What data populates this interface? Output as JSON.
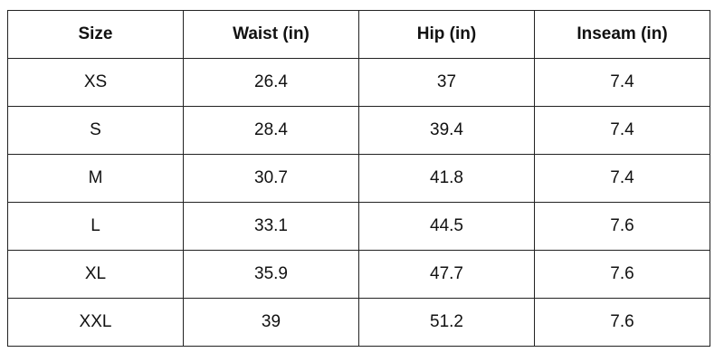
{
  "size_table": {
    "headers": [
      "Size",
      "Waist (in)",
      "Hip (in)",
      "Inseam (in)"
    ],
    "rows": [
      [
        "XS",
        "26.4",
        "37",
        "7.4"
      ],
      [
        "S",
        "28.4",
        "39.4",
        "7.4"
      ],
      [
        "M",
        "30.7",
        "41.8",
        "7.4"
      ],
      [
        "L",
        "33.1",
        "44.5",
        "7.6"
      ],
      [
        "XL",
        "35.9",
        "47.7",
        "7.6"
      ],
      [
        "XXL",
        "39",
        "51.2",
        "7.6"
      ]
    ]
  },
  "chart_data": {
    "type": "table",
    "columns": [
      "Size",
      "Waist (in)",
      "Hip (in)",
      "Inseam (in)"
    ],
    "rows": [
      {
        "Size": "XS",
        "Waist (in)": 26.4,
        "Hip (in)": 37,
        "Inseam (in)": 7.4
      },
      {
        "Size": "S",
        "Waist (in)": 28.4,
        "Hip (in)": 39.4,
        "Inseam (in)": 7.4
      },
      {
        "Size": "M",
        "Waist (in)": 30.7,
        "Hip (in)": 41.8,
        "Inseam (in)": 7.4
      },
      {
        "Size": "L",
        "Waist (in)": 33.1,
        "Hip (in)": 44.5,
        "Inseam (in)": 7.6
      },
      {
        "Size": "XL",
        "Waist (in)": 35.9,
        "Hip (in)": 47.7,
        "Inseam (in)": 7.6
      },
      {
        "Size": "XXL",
        "Waist (in)": 39,
        "Hip (in)": 51.2,
        "Inseam (in)": 7.6
      }
    ]
  }
}
